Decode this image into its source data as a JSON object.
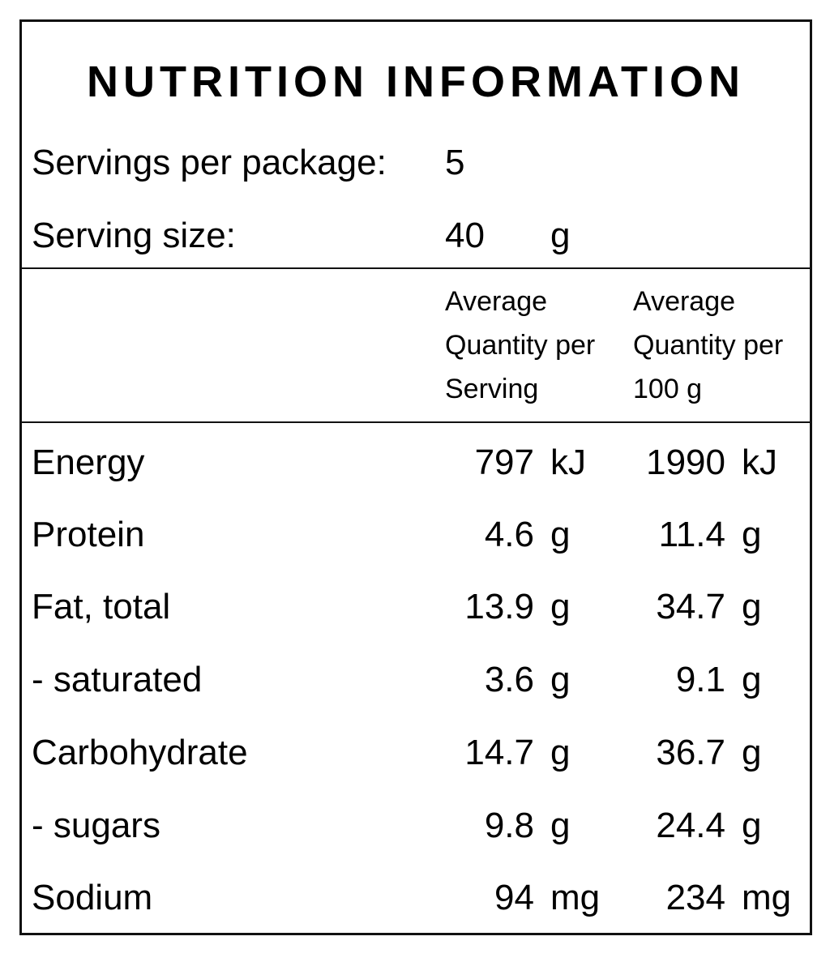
{
  "title": "NUTRITION INFORMATION",
  "servings": {
    "label": "Servings per package:",
    "value": "5"
  },
  "serving_size": {
    "label": "Serving size:",
    "value": "40",
    "unit": "g"
  },
  "columns": {
    "per_serving": [
      "Average",
      "Quantity per",
      "Serving"
    ],
    "per_100g": [
      "Average",
      "Quantity per",
      "100 g"
    ]
  },
  "rows": [
    {
      "name": "Energy",
      "serving_value": "797",
      "serving_unit": "kJ",
      "per100_value": "1990",
      "per100_unit": "kJ"
    },
    {
      "name": "Protein",
      "serving_value": "4.6",
      "serving_unit": "g",
      "per100_value": "11.4",
      "per100_unit": "g"
    },
    {
      "name": "Fat, total",
      "serving_value": "13.9",
      "serving_unit": "g",
      "per100_value": "34.7",
      "per100_unit": "g"
    },
    {
      "name": "- saturated",
      "serving_value": "3.6",
      "serving_unit": "g",
      "per100_value": "9.1",
      "per100_unit": "g"
    },
    {
      "name": "Carbohydrate",
      "serving_value": "14.7",
      "serving_unit": "g",
      "per100_value": "36.7",
      "per100_unit": "g"
    },
    {
      "name": "- sugars",
      "serving_value": "9.8",
      "serving_unit": "g",
      "per100_value": "24.4",
      "per100_unit": "g"
    },
    {
      "name": "Sodium",
      "serving_value": "94",
      "serving_unit": "mg",
      "per100_value": "234",
      "per100_unit": "mg"
    }
  ]
}
